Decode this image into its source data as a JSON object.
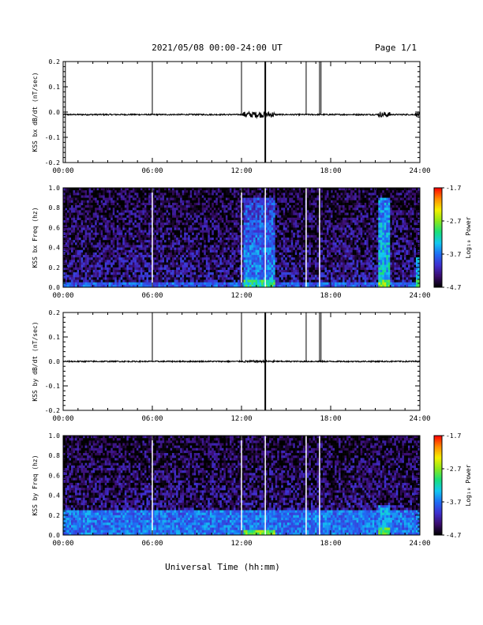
{
  "header": {
    "date_range": "2021/05/08  00:00-24:00 UT",
    "page": "Page 1/1"
  },
  "x_axis": {
    "label": "Universal Time (hh:mm)",
    "ticks": [
      "00:00",
      "06:00",
      "12:00",
      "18:00",
      "24:00"
    ]
  },
  "colorbar": {
    "label": "Log₁₀ Power",
    "ticks": [
      "-1.7",
      "-2.7",
      "-3.7",
      "-4.7"
    ],
    "range": [
      -4.7,
      -1.7
    ],
    "colormap": [
      "#000000",
      "#3a0c6e",
      "#3f2fd0",
      "#1e6ef5",
      "#12c8f0",
      "#18e07a",
      "#8ce81a",
      "#f5f000",
      "#ff8c00",
      "#ff0000"
    ]
  },
  "vertical_markers_hours": [
    0.15,
    6.0,
    12.0,
    13.6,
    16.35,
    17.25,
    17.35
  ],
  "chart_data": [
    {
      "type": "line",
      "ylabel": "KSS bx dB/dt (nT/sec)",
      "xlim": [
        0,
        24
      ],
      "ylim": [
        -0.2,
        0.2
      ],
      "yticks": [
        "0.2",
        "0.1",
        "0.0",
        "-0.1",
        "-0.2"
      ],
      "baseline": -0.01,
      "spikes": [
        {
          "x": 0.15,
          "y": [
            -0.2,
            0.2
          ]
        },
        {
          "x": 6.0,
          "y": [
            -0.01,
            0.2
          ]
        },
        {
          "x": 12.0,
          "y": [
            -0.01,
            0.2
          ]
        },
        {
          "x": 13.6,
          "y": [
            -0.2,
            0.2
          ]
        },
        {
          "x": 16.35,
          "y": [
            -0.01,
            0.2
          ]
        },
        {
          "x": 17.25,
          "y": [
            -0.01,
            0.2
          ]
        },
        {
          "x": 17.35,
          "y": [
            -0.01,
            0.2
          ]
        },
        {
          "x": 24.0,
          "y": [
            -0.2,
            0.2
          ]
        }
      ],
      "noisy_intervals": [
        {
          "x": [
            12.1,
            14.2
          ],
          "amplitude": 0.012
        },
        {
          "x": [
            21.2,
            22.0
          ],
          "amplitude": 0.01
        },
        {
          "x": [
            23.7,
            24.0
          ],
          "amplitude": 0.008
        }
      ]
    },
    {
      "type": "heatmap",
      "ylabel": "KSS bx Freq (hz)",
      "xlim": [
        0,
        24
      ],
      "ylim": [
        0.0,
        1.0
      ],
      "yticks": [
        "1.0",
        "0.8",
        "0.6",
        "0.4",
        "0.2",
        "0.0"
      ],
      "zlim": [
        -4.7,
        -1.7
      ],
      "background_level": -4.3,
      "low_freq_band": {
        "max_freq": 0.06,
        "level": -3.8
      },
      "active_intervals": [
        {
          "x": [
            12.1,
            14.2
          ],
          "max_freq": 0.9,
          "level": -3.6
        },
        {
          "x": [
            21.2,
            22.0
          ],
          "max_freq": 0.9,
          "level": -3.3
        },
        {
          "x": [
            23.7,
            24.0
          ],
          "max_freq": 0.3,
          "level": -3.4
        }
      ],
      "gaps_hours": [
        6.0,
        12.0,
        13.6,
        16.35,
        17.25
      ]
    },
    {
      "type": "line",
      "ylabel": "KSS by dB/dt (nT/sec)",
      "xlim": [
        0,
        24
      ],
      "ylim": [
        -0.2,
        0.2
      ],
      "yticks": [
        "0.2",
        "0.1",
        "0.0",
        "-0.1",
        "-0.2"
      ],
      "baseline": 0.0,
      "spikes": [
        {
          "x": 6.0,
          "y": [
            0.0,
            0.2
          ]
        },
        {
          "x": 12.0,
          "y": [
            0.0,
            0.2
          ]
        },
        {
          "x": 13.6,
          "y": [
            -0.2,
            0.2
          ]
        },
        {
          "x": 16.35,
          "y": [
            0.0,
            0.2
          ]
        },
        {
          "x": 17.25,
          "y": [
            0.0,
            0.2
          ]
        },
        {
          "x": 17.35,
          "y": [
            0.0,
            0.2
          ]
        }
      ],
      "noisy_intervals": [
        {
          "x": [
            12.1,
            14.2
          ],
          "amplitude": 0.004
        }
      ]
    },
    {
      "type": "heatmap",
      "ylabel": "KSS by Freq (hz)",
      "xlim": [
        0,
        24
      ],
      "ylim": [
        0.0,
        1.0
      ],
      "yticks": [
        "1.0",
        "0.8",
        "0.6",
        "0.4",
        "0.2",
        "0.0"
      ],
      "zlim": [
        -4.7,
        -1.7
      ],
      "background_level": -4.3,
      "low_freq_band": {
        "max_freq": 0.25,
        "level": -3.7
      },
      "active_intervals": [
        {
          "x": [
            12.1,
            14.2
          ],
          "max_freq": 0.06,
          "level": -3.3
        },
        {
          "x": [
            21.2,
            22.0
          ],
          "max_freq": 0.3,
          "level": -3.5
        }
      ],
      "gaps_hours": [
        6.0,
        12.0,
        13.6,
        16.35,
        17.25
      ]
    }
  ]
}
